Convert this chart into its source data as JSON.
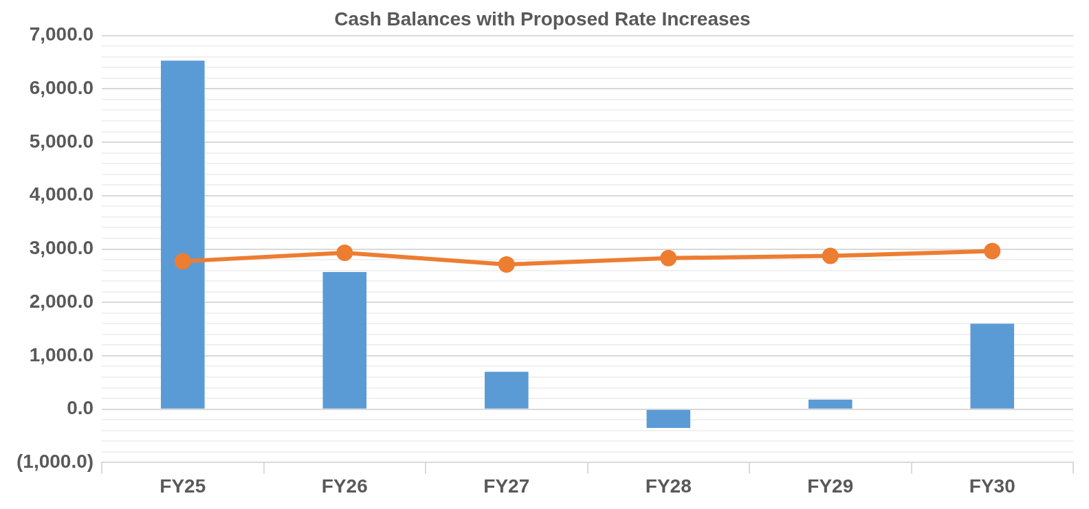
{
  "chart_data": {
    "type": "bar",
    "title": "Cash Balances with Proposed Rate Increases",
    "categories": [
      "FY25",
      "FY26",
      "FY27",
      "FY28",
      "FY29",
      "FY30"
    ],
    "series": [
      {
        "color": "#5b9bd5",
        "values": [
          6530,
          2570,
          700,
          -350,
          180,
          1600
        ]
      },
      {
        "type": "line",
        "color": "#ed7d31",
        "values": [
          2770,
          2930,
          2710,
          2830,
          2870,
          2960
        ]
      }
    ],
    "ylim": [
      -1000,
      7000
    ],
    "yticks": [
      {
        "value": -1000,
        "label": "(1,000.0)"
      },
      {
        "value": -800,
        "label": null
      },
      {
        "value": -600,
        "label": null
      },
      {
        "value": -400,
        "label": null
      },
      {
        "value": -200,
        "label": null
      },
      {
        "value": 0,
        "label": "0.0"
      },
      {
        "value": 200,
        "label": null
      },
      {
        "value": 400,
        "label": null
      },
      {
        "value": 600,
        "label": null
      },
      {
        "value": 800,
        "label": null
      },
      {
        "value": 1000,
        "label": "1,000.0"
      },
      {
        "value": 1200,
        "label": null
      },
      {
        "value": 1400,
        "label": null
      },
      {
        "value": 1600,
        "label": null
      },
      {
        "value": 1800,
        "label": null
      },
      {
        "value": 2000,
        "label": "2,000.0"
      },
      {
        "value": 2200,
        "label": null
      },
      {
        "value": 2400,
        "label": null
      },
      {
        "value": 2600,
        "label": null
      },
      {
        "value": 2800,
        "label": null
      },
      {
        "value": 3000,
        "label": "3,000.0"
      },
      {
        "value": 3200,
        "label": null
      },
      {
        "value": 3400,
        "label": null
      },
      {
        "value": 3600,
        "label": null
      },
      {
        "value": 3800,
        "label": null
      },
      {
        "value": 4000,
        "label": "4,000.0"
      },
      {
        "value": 4200,
        "label": null
      },
      {
        "value": 4400,
        "label": null
      },
      {
        "value": 4600,
        "label": null
      },
      {
        "value": 4800,
        "label": null
      },
      {
        "value": 5000,
        "label": "5,000.0"
      },
      {
        "value": 5200,
        "label": null
      },
      {
        "value": 5400,
        "label": null
      },
      {
        "value": 5600,
        "label": null
      },
      {
        "value": 5800,
        "label": null
      },
      {
        "value": 6000,
        "label": "6,000.0"
      },
      {
        "value": 6200,
        "label": null
      },
      {
        "value": 6400,
        "label": null
      },
      {
        "value": 6600,
        "label": null
      },
      {
        "value": 6800,
        "label": null
      },
      {
        "value": 7000,
        "label": "7,000.0"
      }
    ],
    "grid": "y",
    "legend": false,
    "marker": "circle",
    "line_style": "solid"
  }
}
